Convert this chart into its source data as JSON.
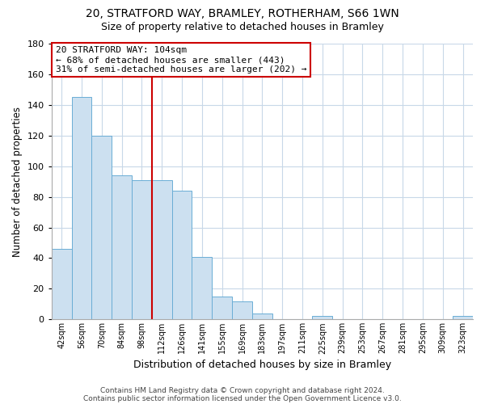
{
  "title1": "20, STRATFORD WAY, BRAMLEY, ROTHERHAM, S66 1WN",
  "title2": "Size of property relative to detached houses in Bramley",
  "xlabel": "Distribution of detached houses by size in Bramley",
  "ylabel": "Number of detached properties",
  "bar_color": "#cce0f0",
  "bar_edge_color": "#6aadd5",
  "categories": [
    "42sqm",
    "56sqm",
    "70sqm",
    "84sqm",
    "98sqm",
    "112sqm",
    "126sqm",
    "141sqm",
    "155sqm",
    "169sqm",
    "183sqm",
    "197sqm",
    "211sqm",
    "225sqm",
    "239sqm",
    "253sqm",
    "267sqm",
    "281sqm",
    "295sqm",
    "309sqm",
    "323sqm"
  ],
  "values": [
    46,
    145,
    120,
    94,
    91,
    91,
    84,
    41,
    15,
    12,
    4,
    0,
    0,
    2,
    0,
    0,
    0,
    0,
    0,
    0,
    2
  ],
  "ylim": [
    0,
    180
  ],
  "yticks": [
    0,
    20,
    40,
    60,
    80,
    100,
    120,
    140,
    160,
    180
  ],
  "vline_color": "#cc0000",
  "annotation_line1": "20 STRATFORD WAY: 104sqm",
  "annotation_line2": "← 68% of detached houses are smaller (443)",
  "annotation_line3": "31% of semi-detached houses are larger (202) →",
  "footer1": "Contains HM Land Registry data © Crown copyright and database right 2024.",
  "footer2": "Contains public sector information licensed under the Open Government Licence v3.0.",
  "background_color": "#ffffff",
  "grid_color": "#c8d8e8"
}
